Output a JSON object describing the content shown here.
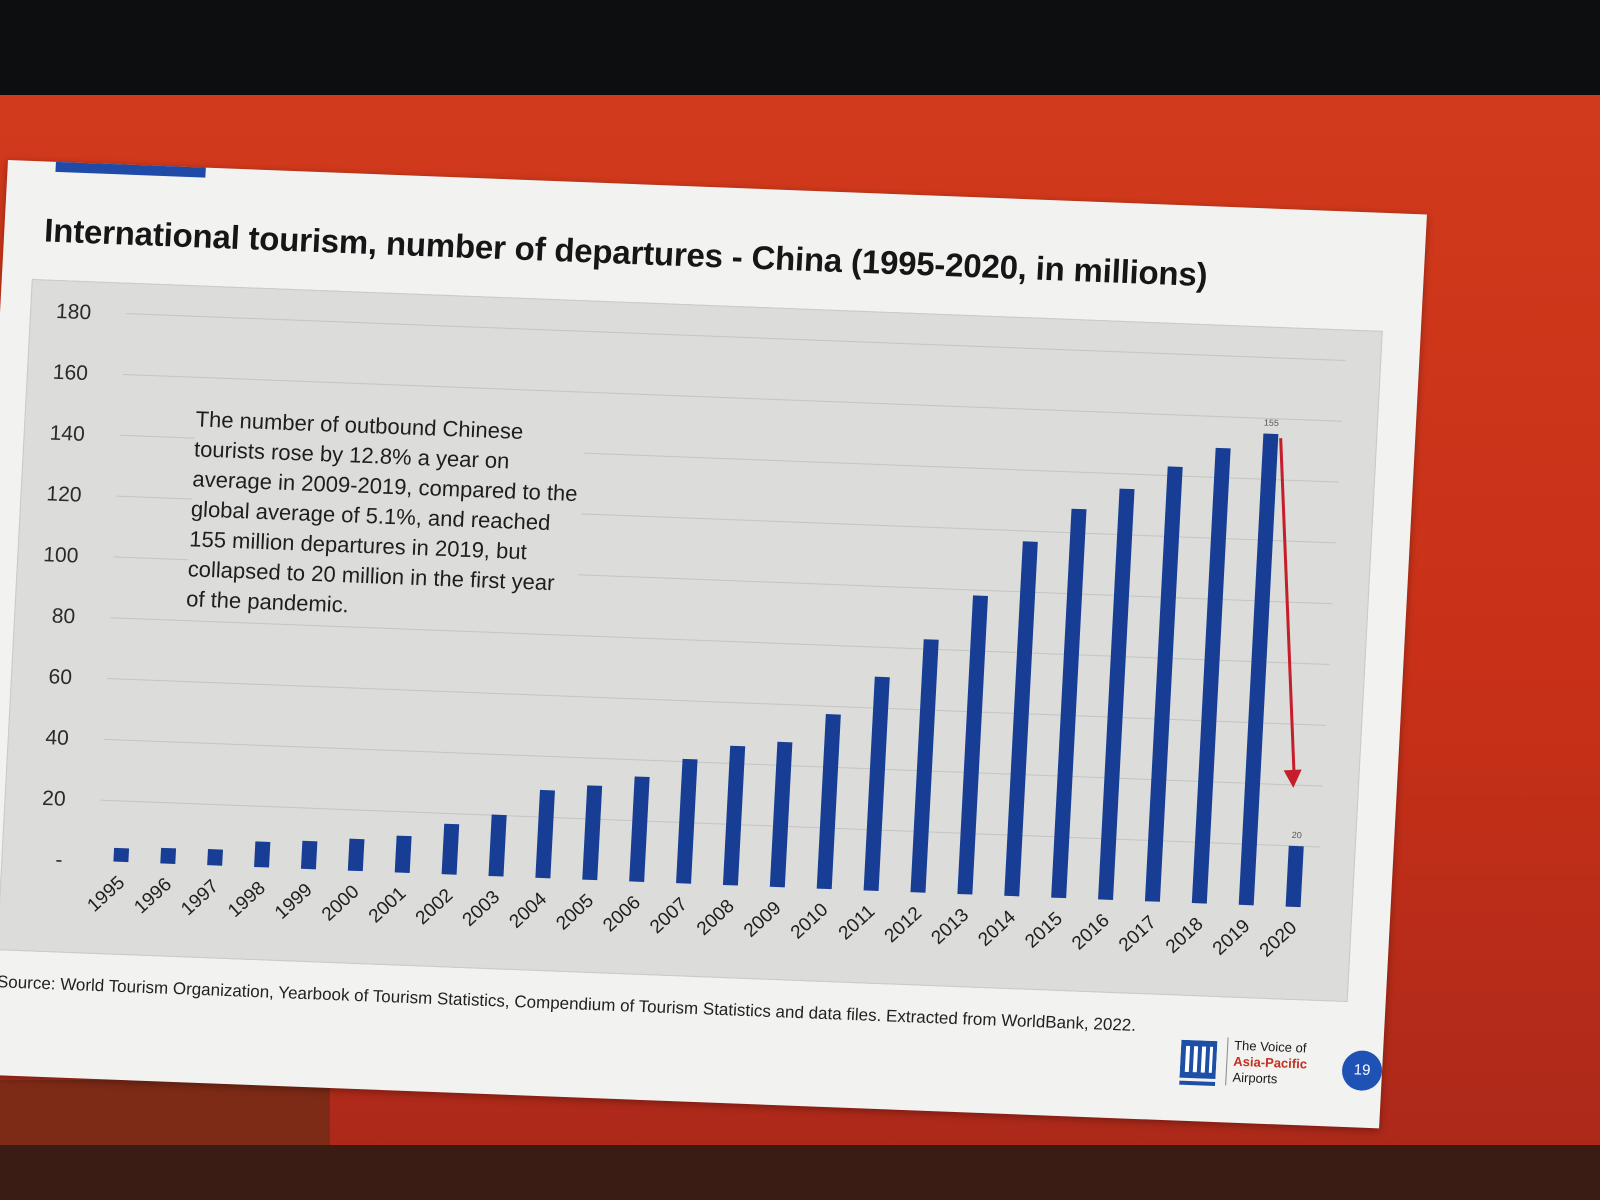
{
  "slide": {
    "title": "International tourism, number of departures - China (1995-2020, in millions)",
    "note": "The number of outbound Chinese tourists rose by 12.8% a year on average in 2009-2019, compared to the global average of 5.1%, and reached 155 million departures in 2019, but collapsed to 20 million in the first year of the pandemic.",
    "source": "Source: World Tourism Organization, Yearbook of Tourism Statistics, Compendium of Tourism Statistics and data files. Extracted from WorldBank, 2022.",
    "logo": {
      "line1": "The Voice of",
      "line2": "Asia-Pacific",
      "line3": "Airports"
    },
    "page_number": "19"
  },
  "colors": {
    "bar": "#173e94",
    "arrow": "#c41e2a",
    "page_badge": "#1e53b5"
  },
  "chart_data": {
    "type": "bar",
    "categories": [
      "1995",
      "1996",
      "1997",
      "1998",
      "1999",
      "2000",
      "2001",
      "2002",
      "2003",
      "2004",
      "2005",
      "2006",
      "2007",
      "2008",
      "2009",
      "2010",
      "2011",
      "2012",
      "2013",
      "2014",
      "2015",
      "2016",
      "2017",
      "2018",
      "2019",
      "2020"
    ],
    "values": [
      4.5,
      5.1,
      5.3,
      8.4,
      9.2,
      10.5,
      12.1,
      16.6,
      20.2,
      28.9,
      31.0,
      34.5,
      40.9,
      45.8,
      47.7,
      57.4,
      70.3,
      83.2,
      98.2,
      116.6,
      127.9,
      135.1,
      143.0,
      149.7,
      155,
      20
    ],
    "data_labels": [
      {
        "category": "2019",
        "text": "155"
      },
      {
        "category": "2020",
        "text": "20"
      }
    ],
    "annotation_arrow": {
      "from": "2019",
      "to": "2020"
    },
    "ytick_labels": [
      "-",
      "20",
      "40",
      "60",
      "80",
      "100",
      "120",
      "140",
      "160",
      "180"
    ],
    "ylim": [
      0,
      180
    ],
    "grid": true,
    "legend": "none"
  }
}
